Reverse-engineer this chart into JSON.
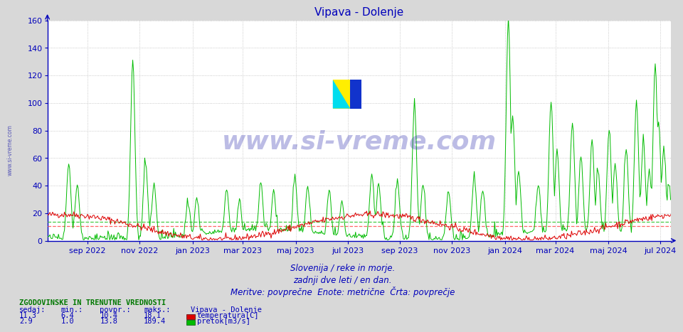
{
  "title": "Vipava - Dolenje",
  "subtitle1": "Slovenija / reke in morje.",
  "subtitle2": "zadnji dve leti / en dan.",
  "subtitle3": "Meritve: povprečne  Enote: metrične  Črta: povprečje",
  "ylim": [
    0,
    160
  ],
  "yticks": [
    0,
    20,
    40,
    60,
    80,
    100,
    120,
    140,
    160
  ],
  "bg_color": "#d8d8d8",
  "plot_bg_color": "#ffffff",
  "temp_color": "#dd0000",
  "flow_color": "#00bb00",
  "avg_temp_color": "#ff6666",
  "avg_flow_color": "#44cc44",
  "axis_color": "#0000bb",
  "title_color": "#0000bb",
  "text_color": "#0000bb",
  "grid_color": "#bbbbbb",
  "watermark_color": "#2222aa",
  "n_points": 731,
  "temp_avg": 10.4,
  "temp_min": 6.4,
  "temp_max": 18.1,
  "temp_current": 11.3,
  "flow_avg": 13.8,
  "flow_min": 1.0,
  "flow_max": 189.4,
  "flow_current": 2.9,
  "bottom_label1": "ZGODOVINSKE IN TRENUTNE VREDNOSTI",
  "bottom_col_sedaj": "sedaj:",
  "bottom_col_min": "min.:",
  "bottom_col_povpr": "povpr.:",
  "bottom_col_maks": "maks.:",
  "bottom_station": "Vipava - Dolenje",
  "legend_temp": "temperatura[C]",
  "legend_flow": "pretok[m3/s]",
  "xticklabels": [
    "sep 2022",
    "nov 2022",
    "jan 2023",
    "mar 2023",
    "maj 2023",
    "jul 2023",
    "sep 2023",
    "nov 2023",
    "jan 2024",
    "mar 2024",
    "maj 2024",
    "jul 2024"
  ],
  "xtick_positions": [
    47,
    108,
    170,
    229,
    291,
    352,
    413,
    474,
    536,
    595,
    657,
    718
  ]
}
